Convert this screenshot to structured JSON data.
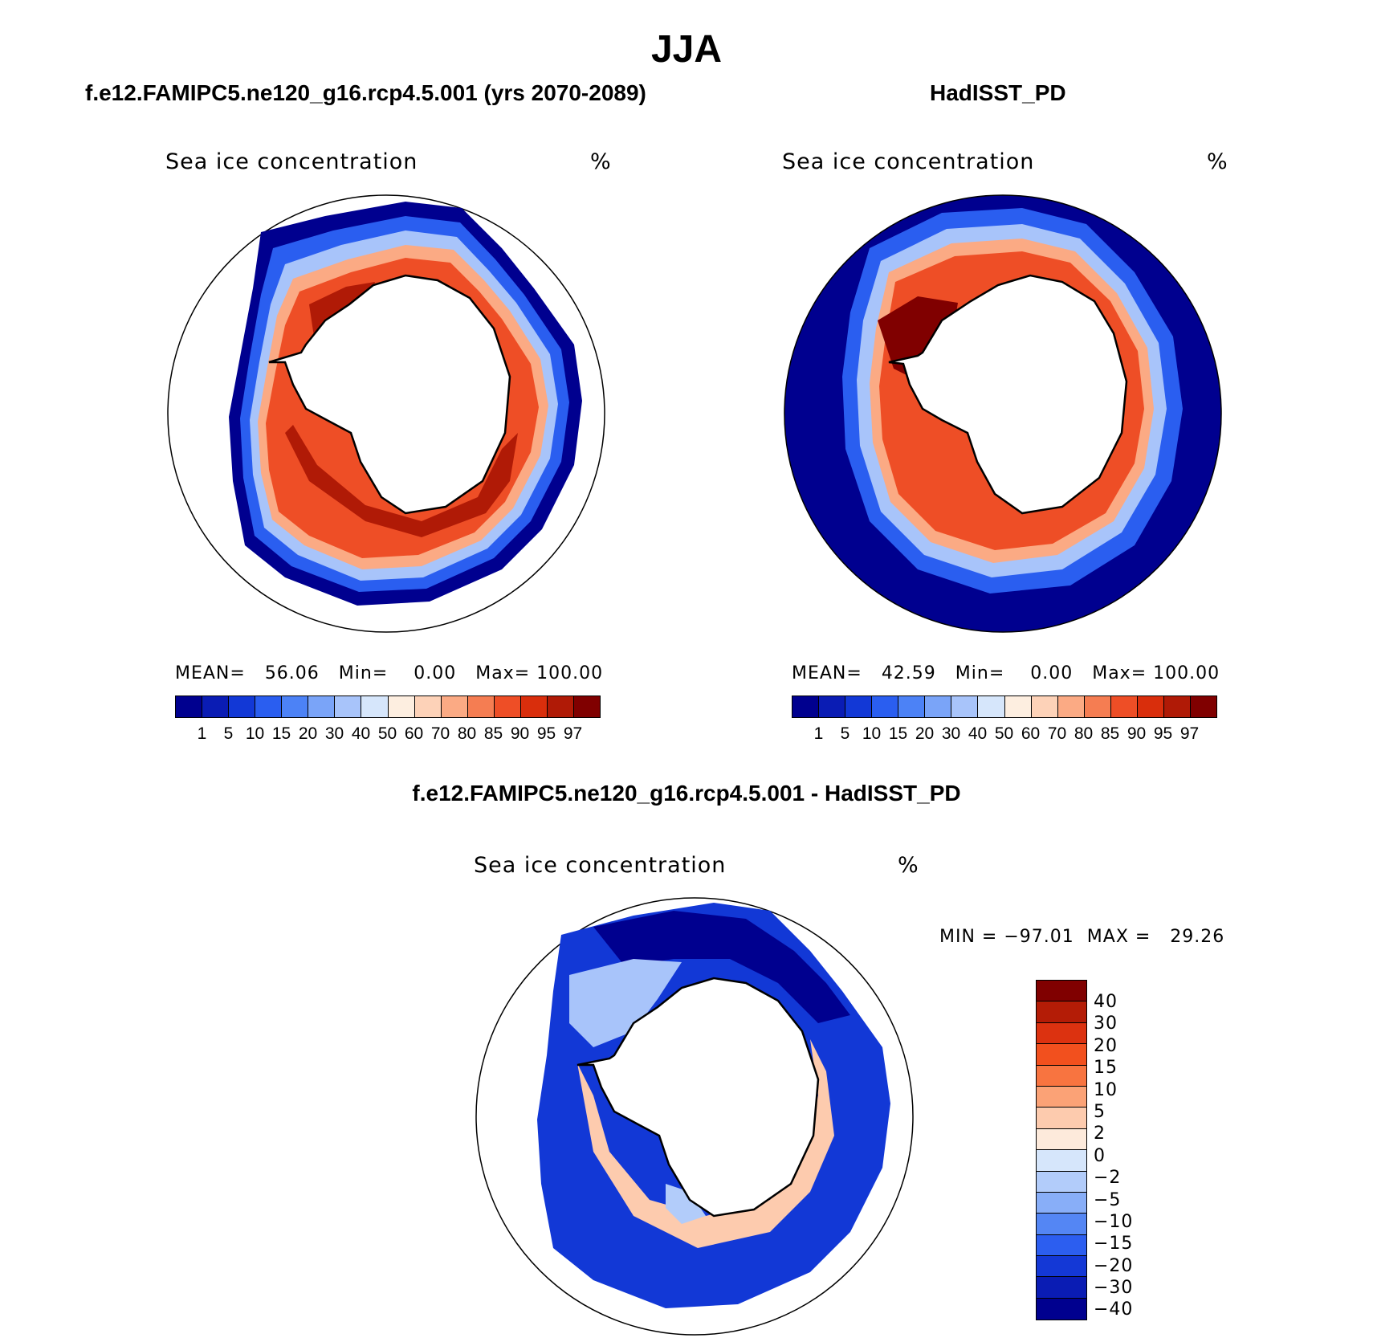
{
  "title": "JJA",
  "panels": {
    "left": {
      "title": "f.e12.FAMIPC5.ne120_g16.rcp4.5.001 (yrs 2070-2089)",
      "variable": "Sea ice concentration",
      "units": "%",
      "stats": {
        "mean_label": "MEAN=",
        "mean": "56.06",
        "min_label": "Min=",
        "min": "0.00",
        "max_label": "Max=",
        "max": "100.00"
      }
    },
    "right": {
      "title": "HadISST_PD",
      "variable": "Sea ice concentration",
      "units": "%",
      "stats": {
        "mean_label": "MEAN=",
        "mean": "42.59",
        "min_label": "Min=",
        "min": "0.00",
        "max_label": "Max=",
        "max": "100.00"
      }
    },
    "diff": {
      "title": "f.e12.FAMIPC5.ne120_g16.rcp4.5.001 - HadISST_PD",
      "variable": "Sea ice concentration",
      "units": "%",
      "stats": {
        "min_label": "MIN =",
        "min": "−97.01",
        "max_label": "MAX =",
        "max": "29.26"
      }
    }
  },
  "colorbar_abs": {
    "ticks": [
      "1",
      "5",
      "10",
      "15",
      "20",
      "30",
      "40",
      "50",
      "60",
      "70",
      "80",
      "85",
      "90",
      "95",
      "97"
    ],
    "colors": [
      "#00008f",
      "#0a1cb4",
      "#1238d6",
      "#2a5ef0",
      "#4c82f6",
      "#7aa4f8",
      "#a8c4fa",
      "#d6e6fb",
      "#fdeee0",
      "#fdd2b8",
      "#fbaa84",
      "#f57d52",
      "#ee4e26",
      "#d92e0c",
      "#b01a06",
      "#800000"
    ]
  },
  "colorbar_diff": {
    "ticks": [
      "40",
      "30",
      "20",
      "15",
      "10",
      "5",
      "2",
      "0",
      "−2",
      "−5",
      "−10",
      "−15",
      "−20",
      "−30",
      "−40"
    ],
    "colors": [
      "#800000",
      "#b41c06",
      "#dc3210",
      "#f2501e",
      "#f87440",
      "#fba276",
      "#fdcbae",
      "#fdeadb",
      "#d6e6fb",
      "#b2ccfa",
      "#88aef8",
      "#5486f4",
      "#2c5ef0",
      "#1438d6",
      "#0a1cb4",
      "#00008f"
    ]
  }
}
